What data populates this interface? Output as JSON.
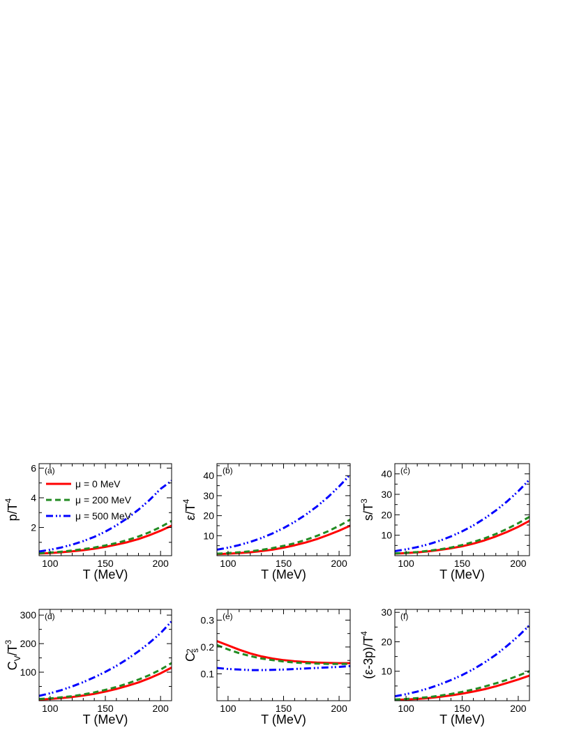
{
  "colors": {
    "mu0": "#ff0000",
    "mu200": "#228b22",
    "mu500": "#0000ff"
  },
  "legend": {
    "entries": [
      {
        "series": "mu0",
        "label": "μ = 0 MeV",
        "dash": "solid"
      },
      {
        "series": "mu200",
        "label": "μ = 200 MeV",
        "dash": "dashed"
      },
      {
        "series": "mu500",
        "label": "μ = 500 MeV",
        "dash": "dashdotdot"
      }
    ]
  },
  "chart_data": [
    {
      "type": "line",
      "panel": "(a)",
      "title": "",
      "xlabel": "T (MeV)",
      "ylabel": {
        "base": "p/T",
        "sup": "4",
        "sub": ""
      },
      "xlim": [
        90,
        210
      ],
      "ylim": [
        0.1,
        6.3
      ],
      "xticks": [
        100,
        150,
        200
      ],
      "yticks": [
        2,
        4,
        6
      ],
      "legend": "top-left",
      "x": [
        90,
        100,
        110,
        120,
        130,
        140,
        150,
        160,
        170,
        180,
        190,
        200,
        210
      ],
      "series": [
        {
          "name": "μ = 0 MeV",
          "key": "mu0",
          "values": [
            0.24,
            0.28,
            0.33,
            0.39,
            0.47,
            0.57,
            0.69,
            0.84,
            1.01,
            1.22,
            1.48,
            1.78,
            2.12
          ]
        },
        {
          "name": "μ = 200 MeV",
          "key": "mu200",
          "values": [
            0.26,
            0.31,
            0.37,
            0.45,
            0.54,
            0.65,
            0.79,
            0.95,
            1.15,
            1.39,
            1.68,
            2.03,
            2.44
          ]
        },
        {
          "name": "μ = 500 MeV",
          "key": "mu500",
          "values": [
            0.38,
            0.5,
            0.65,
            0.84,
            1.08,
            1.37,
            1.72,
            2.14,
            2.63,
            3.2,
            3.85,
            4.6,
            5.15
          ]
        }
      ]
    },
    {
      "type": "line",
      "panel": "(b)",
      "title": "",
      "xlabel": "T (MeV)",
      "ylabel": {
        "base": "ε/T",
        "sup": "4",
        "sub": ""
      },
      "xlim": [
        90,
        210
      ],
      "ylim": [
        0,
        46
      ],
      "xticks": [
        100,
        150,
        200
      ],
      "yticks": [
        10,
        20,
        30,
        40
      ],
      "legend": "none",
      "x": [
        90,
        100,
        110,
        120,
        130,
        140,
        150,
        160,
        170,
        180,
        190,
        200,
        210
      ],
      "series": [
        {
          "name": "μ = 0 MeV",
          "key": "mu0",
          "values": [
            0.8,
            1.0,
            1.3,
            1.7,
            2.3,
            3.0,
            4.0,
            5.2,
            6.6,
            8.3,
            10.3,
            12.5,
            15.0
          ]
        },
        {
          "name": "μ = 200 MeV",
          "key": "mu200",
          "values": [
            1.0,
            1.3,
            1.7,
            2.2,
            2.9,
            3.8,
            4.9,
            6.2,
            7.9,
            9.9,
            12.2,
            14.9,
            18.0
          ]
        },
        {
          "name": "μ = 500 MeV",
          "key": "mu500",
          "values": [
            3.0,
            4.0,
            5.3,
            6.9,
            8.8,
            11.1,
            13.8,
            16.9,
            20.5,
            24.6,
            29.3,
            34.6,
            40.5
          ]
        }
      ]
    },
    {
      "type": "line",
      "panel": "(c)",
      "title": "",
      "xlabel": "T (MeV)",
      "ylabel": {
        "base": "s/T",
        "sup": "3",
        "sub": ""
      },
      "xlim": [
        90,
        210
      ],
      "ylim": [
        0,
        45
      ],
      "xticks": [
        100,
        150,
        200
      ],
      "yticks": [
        10,
        20,
        30,
        40
      ],
      "legend": "none",
      "x": [
        90,
        100,
        110,
        120,
        130,
        140,
        150,
        160,
        170,
        180,
        190,
        200,
        210
      ],
      "series": [
        {
          "name": "μ = 0 MeV",
          "key": "mu0",
          "values": [
            1.0,
            1.3,
            1.6,
            2.1,
            2.8,
            3.6,
            4.6,
            5.9,
            7.5,
            9.4,
            11.6,
            14.1,
            17.0
          ]
        },
        {
          "name": "μ = 200 MeV",
          "key": "mu200",
          "values": [
            1.1,
            1.4,
            1.8,
            2.4,
            3.1,
            4.0,
            5.2,
            6.7,
            8.5,
            10.6,
            13.1,
            15.9,
            19.0
          ]
        },
        {
          "name": "μ = 500 MeV",
          "key": "mu500",
          "values": [
            2.2,
            3.1,
            4.2,
            5.6,
            7.3,
            9.4,
            11.9,
            14.8,
            18.2,
            22.1,
            26.5,
            31.5,
            37.2
          ]
        }
      ]
    },
    {
      "type": "line",
      "panel": "(d)",
      "title": "",
      "xlabel": "T (MeV)",
      "ylabel": {
        "base": "C",
        "sup": "3",
        "sub": "V",
        "tail": "/T"
      },
      "xlim": [
        90,
        210
      ],
      "ylim": [
        0,
        320
      ],
      "xticks": [
        100,
        150,
        200
      ],
      "yticks": [
        100,
        200,
        300
      ],
      "legend": "none",
      "x": [
        90,
        100,
        110,
        120,
        130,
        140,
        150,
        160,
        170,
        180,
        190,
        200,
        210
      ],
      "series": [
        {
          "name": "μ = 0 MeV",
          "key": "mu0",
          "values": [
            4,
            6,
            9,
            13,
            18,
            24,
            32,
            41,
            52,
            64,
            79,
            96,
            116
          ]
        },
        {
          "name": "μ = 200 MeV",
          "key": "mu200",
          "values": [
            6,
            8,
            12,
            16,
            22,
            29,
            38,
            48,
            60,
            74,
            90,
            109,
            132
          ]
        },
        {
          "name": "μ = 500 MeV",
          "key": "mu500",
          "values": [
            17,
            26,
            37,
            50,
            65,
            82,
            101,
            122,
            146,
            173,
            203,
            237,
            278
          ]
        }
      ]
    },
    {
      "type": "line",
      "panel": "(e)",
      "title": "",
      "xlabel": "T (MeV)",
      "ylabel": {
        "base": "C",
        "sup": "2",
        "sub": "s",
        "tail": ""
      },
      "xlim": [
        90,
        210
      ],
      "ylim": [
        0.0,
        0.34
      ],
      "xticks": [
        100,
        150,
        200
      ],
      "yticks": [
        0.1,
        0.2,
        0.3
      ],
      "legend": "none",
      "x": [
        90,
        100,
        110,
        120,
        130,
        140,
        150,
        160,
        170,
        180,
        190,
        200,
        210
      ],
      "series": [
        {
          "name": "μ = 0 MeV",
          "key": "mu0",
          "values": [
            0.222,
            0.206,
            0.19,
            0.176,
            0.165,
            0.157,
            0.151,
            0.147,
            0.144,
            0.142,
            0.141,
            0.14,
            0.14
          ]
        },
        {
          "name": "μ = 200 MeV",
          "key": "mu200",
          "values": [
            0.207,
            0.191,
            0.177,
            0.166,
            0.157,
            0.151,
            0.146,
            0.142,
            0.14,
            0.138,
            0.137,
            0.137,
            0.137
          ]
        },
        {
          "name": "μ = 500 MeV",
          "key": "mu500",
          "values": [
            0.122,
            0.118,
            0.116,
            0.114,
            0.114,
            0.115,
            0.116,
            0.118,
            0.12,
            0.122,
            0.124,
            0.126,
            0.129
          ]
        }
      ]
    },
    {
      "type": "line",
      "panel": "(f)",
      "title": "",
      "xlabel": "T (MeV)",
      "ylabel": {
        "base": "(ε-3p)/T",
        "sup": "4",
        "sub": ""
      },
      "xlim": [
        90,
        210
      ],
      "ylim": [
        0,
        31
      ],
      "xticks": [
        100,
        150,
        200
      ],
      "yticks": [
        10,
        20,
        30
      ],
      "legend": "none",
      "x": [
        90,
        100,
        110,
        120,
        130,
        140,
        150,
        160,
        170,
        180,
        190,
        200,
        210
      ],
      "series": [
        {
          "name": "μ = 0 MeV",
          "key": "mu0",
          "values": [
            0.3,
            0.4,
            0.6,
            0.9,
            1.3,
            1.8,
            2.4,
            3.1,
            3.9,
            4.9,
            6.0,
            7.2,
            8.5
          ]
        },
        {
          "name": "μ = 200 MeV",
          "key": "mu200",
          "values": [
            0.4,
            0.6,
            0.9,
            1.2,
            1.7,
            2.3,
            3.0,
            3.8,
            4.8,
            5.9,
            7.1,
            8.5,
            10.0
          ]
        },
        {
          "name": "μ = 500 MeV",
          "key": "mu500",
          "values": [
            1.5,
            2.2,
            3.1,
            4.2,
            5.5,
            7.0,
            8.7,
            10.7,
            13.0,
            15.6,
            18.6,
            21.9,
            25.6
          ]
        }
      ]
    }
  ]
}
